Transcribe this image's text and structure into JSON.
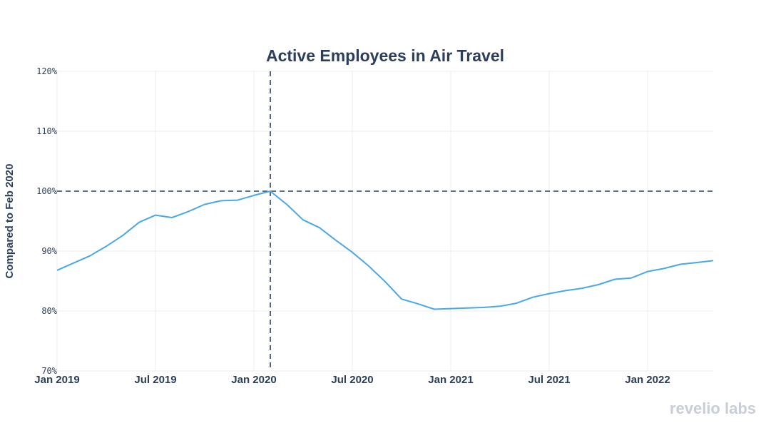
{
  "chart_data": {
    "type": "line",
    "title": "Active Employees in Air Travel",
    "ylabel": "Compared to Feb 2020",
    "xlabel": "",
    "ylim": [
      70,
      120
    ],
    "y_ticks": [
      70,
      80,
      90,
      100,
      110,
      120
    ],
    "y_tick_labels": [
      "70%",
      "80%",
      "90%",
      "100%",
      "110%",
      "120%"
    ],
    "x_range": [
      "2019-01",
      "2022-05"
    ],
    "x_ticks": [
      "2019-01",
      "2019-07",
      "2020-01",
      "2020-07",
      "2021-01",
      "2021-07",
      "2022-01"
    ],
    "x_tick_labels": [
      "Jan 2019",
      "Jul 2019",
      "Jan 2020",
      "Jul 2020",
      "Jan 2021",
      "Jul 2021",
      "Jan 2022"
    ],
    "grid": true,
    "reference_lines": {
      "x": "2020-02",
      "y": 100
    },
    "series": [
      {
        "color": "#4aa8e6",
        "x": [
          "2019-01",
          "2019-02",
          "2019-03",
          "2019-04",
          "2019-05",
          "2019-06",
          "2019-07",
          "2019-08",
          "2019-09",
          "2019-10",
          "2019-11",
          "2019-12",
          "2020-01",
          "2020-02",
          "2020-03",
          "2020-04",
          "2020-05",
          "2020-06",
          "2020-07",
          "2020-08",
          "2020-09",
          "2020-10",
          "2020-11",
          "2020-12",
          "2021-01",
          "2021-02",
          "2021-03",
          "2021-04",
          "2021-05",
          "2021-06",
          "2021-07",
          "2021-08",
          "2021-09",
          "2021-10",
          "2021-11",
          "2021-12",
          "2022-01",
          "2022-02",
          "2022-03",
          "2022-04",
          "2022-05"
        ],
        "values": [
          86.8,
          88.0,
          89.2,
          90.8,
          92.6,
          94.8,
          96.0,
          95.6,
          96.6,
          97.8,
          98.4,
          98.5,
          99.3,
          100.0,
          97.8,
          95.2,
          93.9,
          91.8,
          89.8,
          87.5,
          84.9,
          82.0,
          81.2,
          80.3,
          80.4,
          80.5,
          80.6,
          80.8,
          81.3,
          82.3,
          82.9,
          83.4,
          83.8,
          84.4,
          85.3,
          85.5,
          86.6,
          87.1,
          87.8,
          88.1,
          88.4
        ]
      }
    ],
    "colors": {
      "text": "#2c3e5c",
      "grid": "#ececec",
      "reference": "#2c3e5c",
      "line": "#4aa8e6"
    }
  },
  "brand": {
    "text": "revelio labs"
  }
}
